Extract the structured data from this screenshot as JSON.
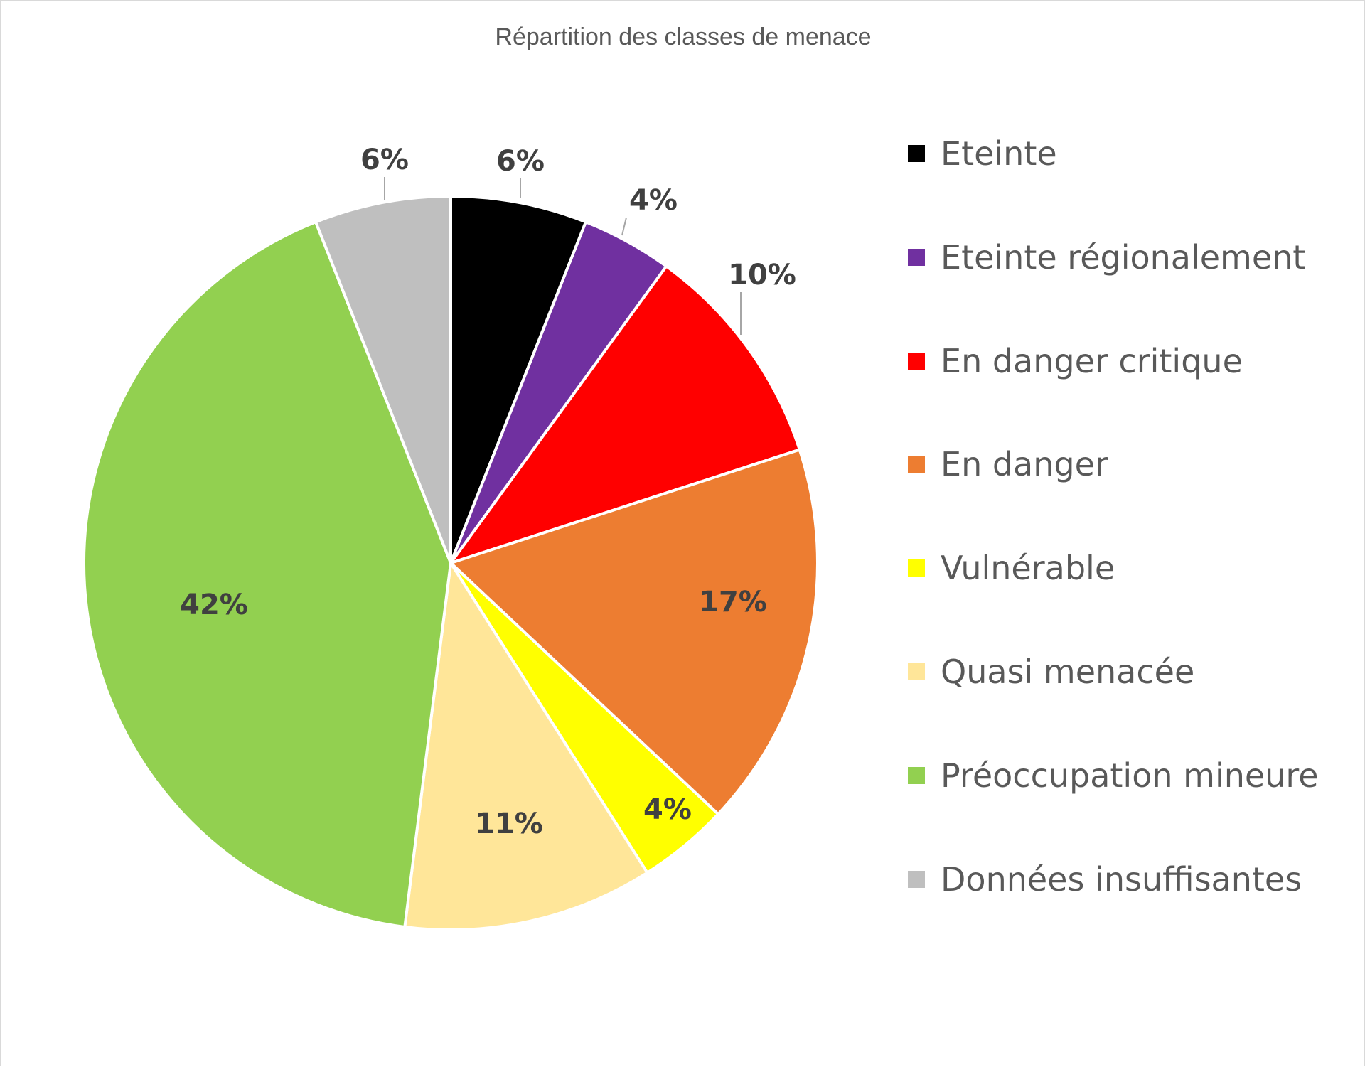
{
  "chart_data": {
    "type": "pie",
    "title": "Répartition des classes de menace",
    "legend_position": "right",
    "slices": [
      {
        "name": "Eteinte",
        "value": 6,
        "label": "6%",
        "color": "#000000"
      },
      {
        "name": "Eteinte régionalement",
        "value": 4,
        "label": "4%",
        "color": "#7030A0"
      },
      {
        "name": "En danger critique",
        "value": 10,
        "label": "10%",
        "color": "#FF0000"
      },
      {
        "name": "En danger",
        "value": 17,
        "label": "17%",
        "color": "#ED7D31"
      },
      {
        "name": "Vulnérable",
        "value": 4,
        "label": "4%",
        "color": "#FFFF00"
      },
      {
        "name": "Quasi menacée",
        "value": 11,
        "label": "11%",
        "color": "#FFE699"
      },
      {
        "name": "Préoccupation mineure",
        "value": 42,
        "label": "42%",
        "color": "#92D050"
      },
      {
        "name": "Données insuffisantes",
        "value": 6,
        "label": "6%",
        "color": "#BFBFBF"
      }
    ]
  }
}
